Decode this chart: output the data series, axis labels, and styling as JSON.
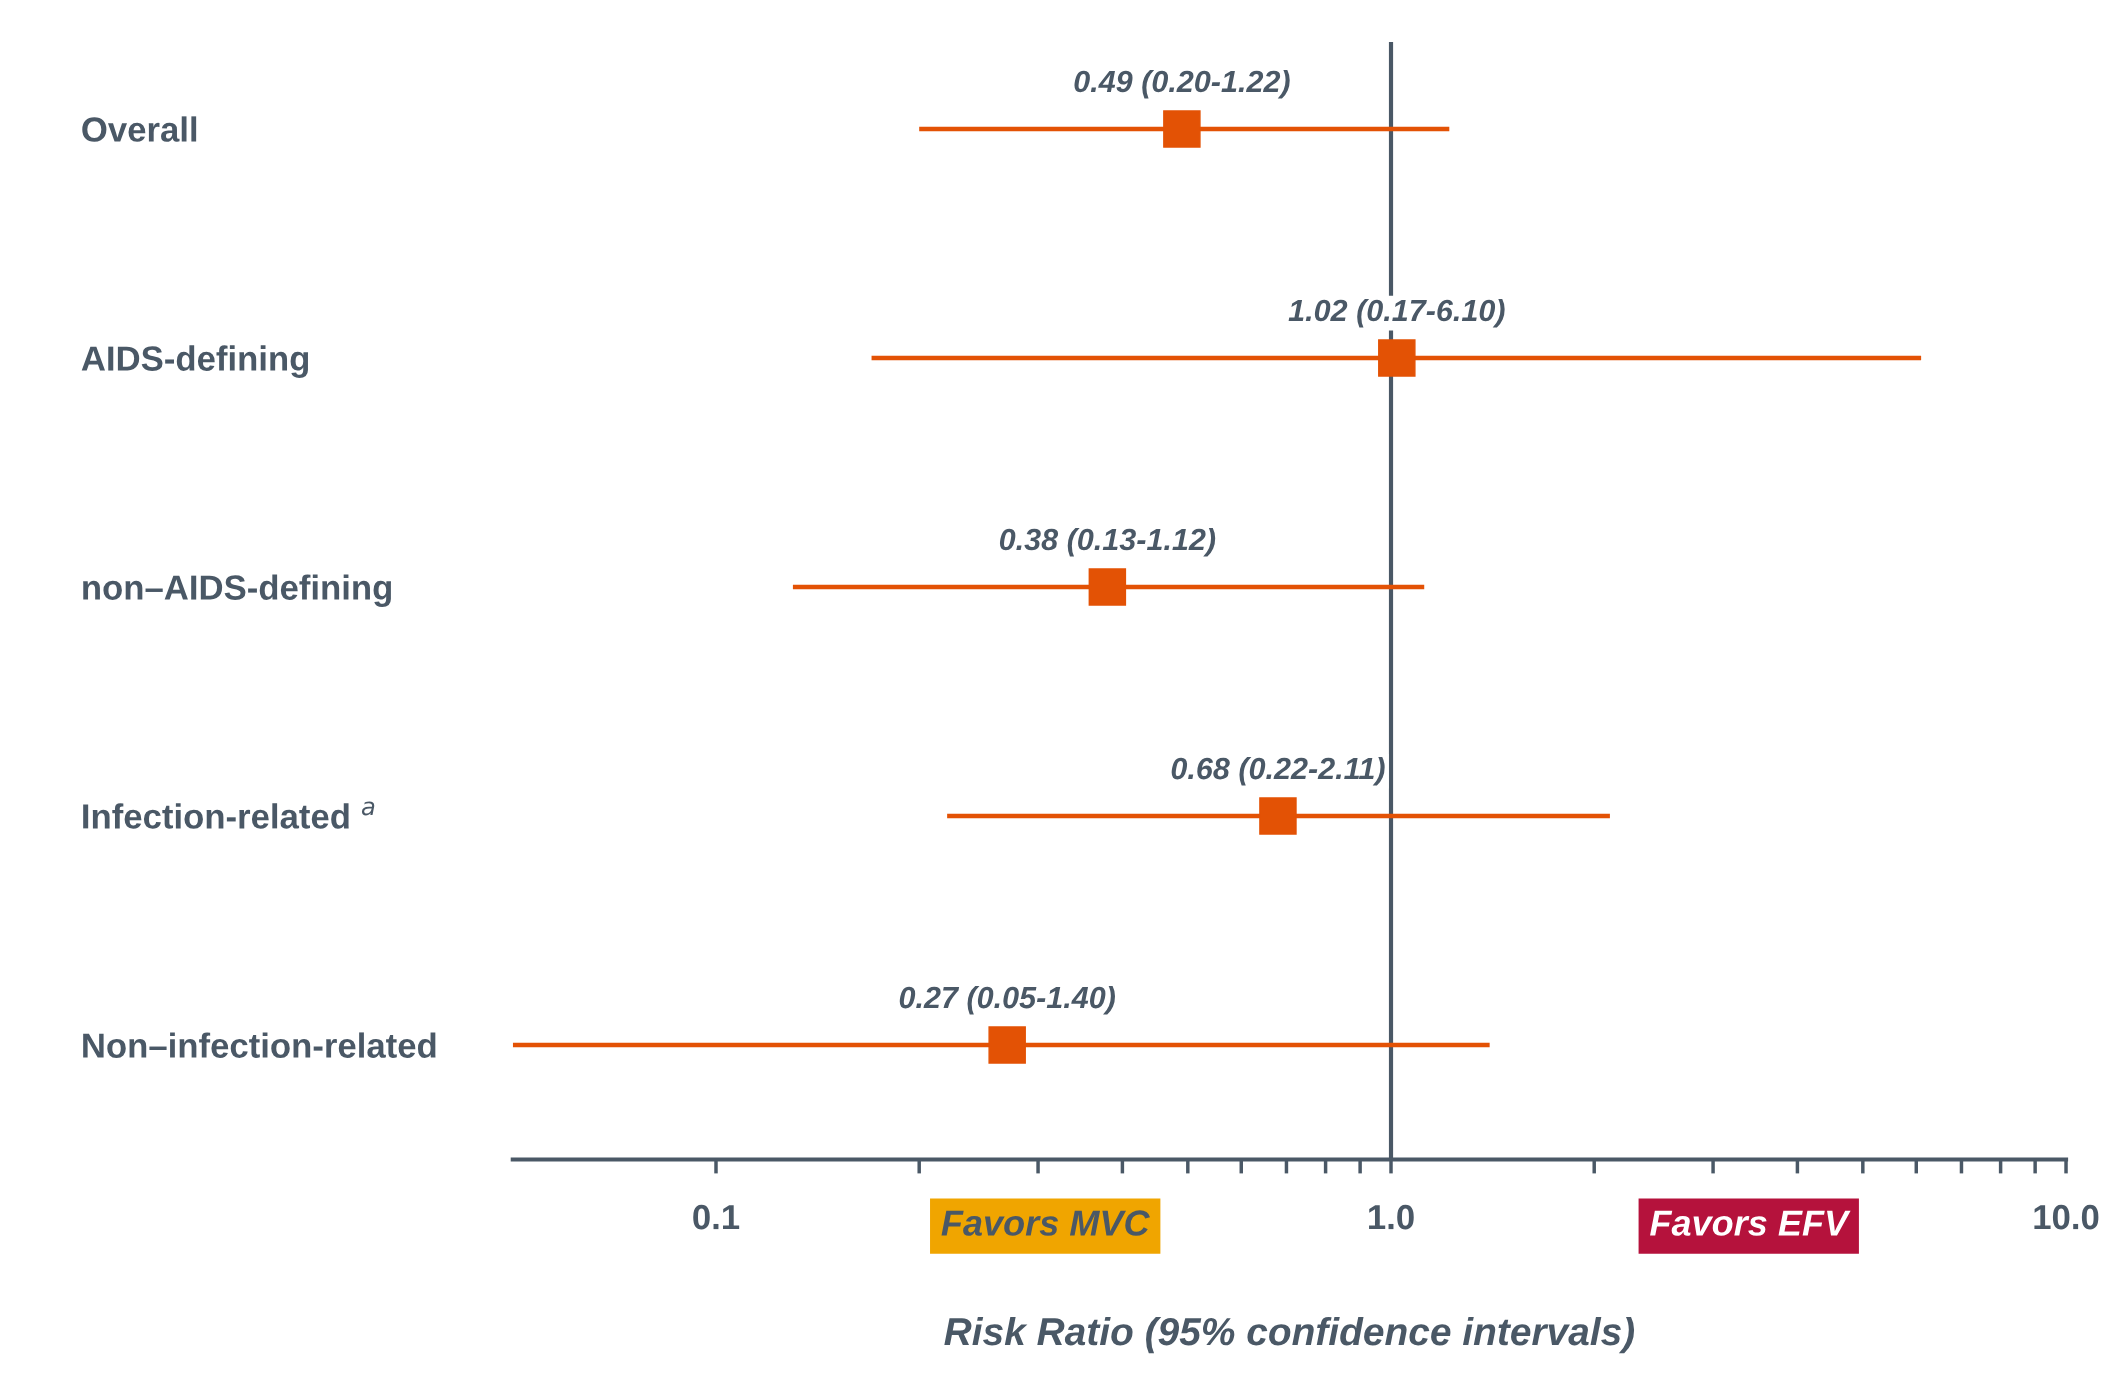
{
  "chart_data": {
    "type": "scatter",
    "orientation": "horizontal",
    "log": "x",
    "categories": [
      "Overall",
      "AIDS-defining",
      "non–AIDS-defining",
      "Infection-related $^{a}$",
      "Non–infection-related"
    ],
    "series": [
      {
        "color": "#e35205",
        "values": [
          0.49,
          1.02,
          0.38,
          0.68,
          0.27
        ],
        "errors": [
          [
            0.2,
            1.22
          ],
          [
            0.17,
            6.1
          ],
          [
            0.13,
            1.12
          ],
          [
            0.22,
            2.11
          ],
          [
            0.05,
            1.4
          ]
        ],
        "value_labels": [
          "0.49 (0.20-1.22)",
          "1.02 (0.17-6.10)",
          "0.38 (0.13-1.12)",
          "0.68 (0.22-2.11)",
          "0.27 (0.05-1.40)"
        ]
      }
    ],
    "marker": "square",
    "xlim": [
      0.05,
      10
    ],
    "xticks": [
      {
        "value": 0.1,
        "label": "0.1"
      },
      {
        "value": 0.2,
        "label": null
      },
      {
        "value": 0.3,
        "label": null
      },
      {
        "value": 0.4,
        "label": null
      },
      {
        "value": 0.5,
        "label": null
      },
      {
        "value": 0.6,
        "label": null
      },
      {
        "value": 0.7,
        "label": null
      },
      {
        "value": 0.8,
        "label": null
      },
      {
        "value": 0.9,
        "label": null
      },
      {
        "value": 1,
        "label": "1.0"
      },
      {
        "value": 2,
        "label": null
      },
      {
        "value": 3,
        "label": null
      },
      {
        "value": 4,
        "label": null
      },
      {
        "value": 5,
        "label": null
      },
      {
        "value": 6,
        "label": null
      },
      {
        "value": 7,
        "label": null
      },
      {
        "value": 8,
        "label": null
      },
      {
        "value": 9,
        "label": null
      },
      {
        "value": 10,
        "label": "10.0"
      }
    ],
    "ref_lines": [
      {
        "axis": "x",
        "value": 1,
        "color": "#4a5866"
      }
    ],
    "xlabel": "Risk Ratio (95% confidence intervals)",
    "annotations": [
      "Favors MVC",
      "Favors EFV"
    ],
    "grid": false,
    "legend": false
  }
}
